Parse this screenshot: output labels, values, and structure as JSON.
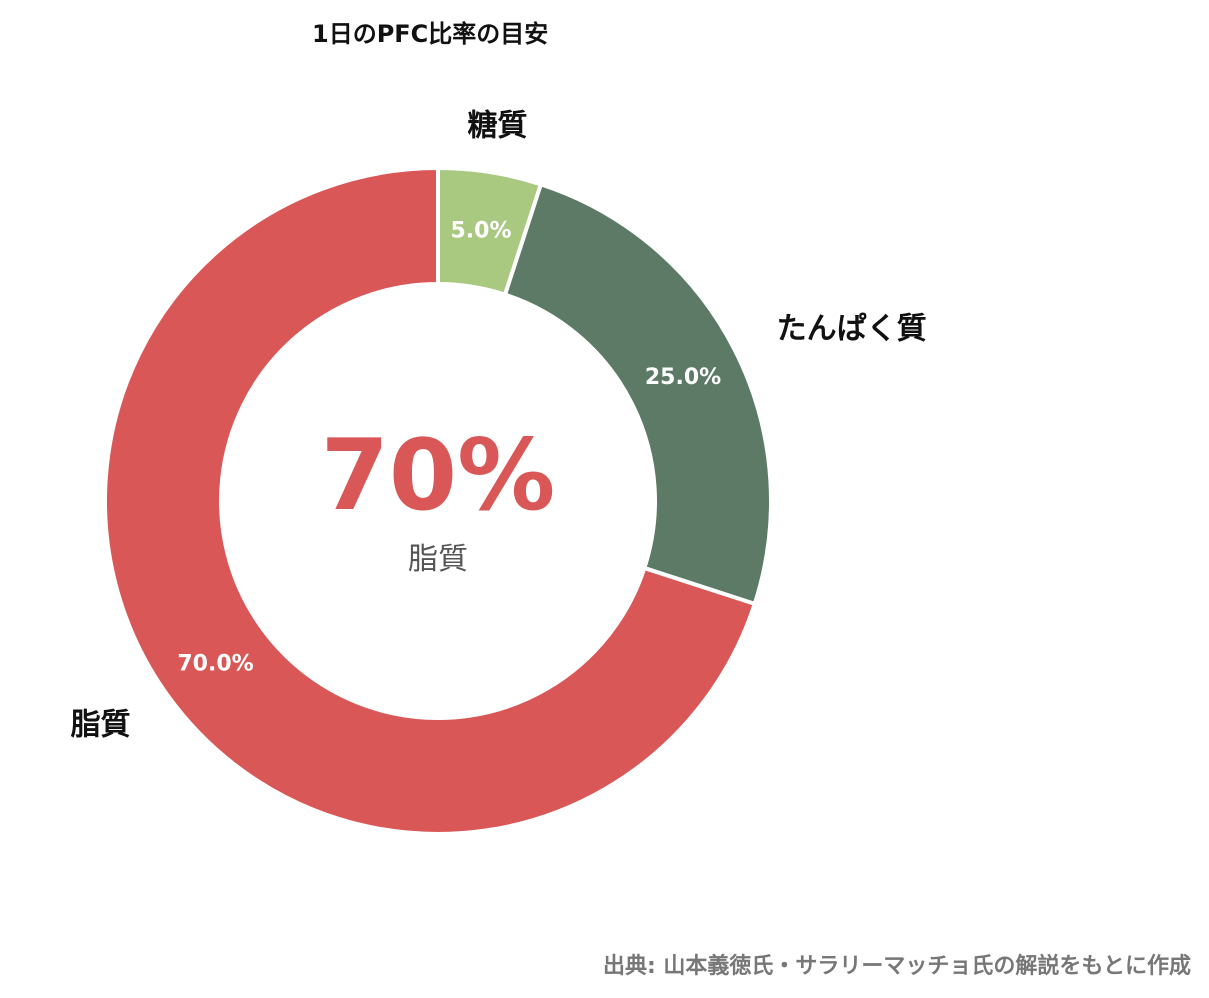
{
  "chart_data": {
    "type": "pie",
    "variant": "donut",
    "title": "1日のPFC比率の目安",
    "categories": [
      "糖質",
      "たんぱく質",
      "脂質"
    ],
    "values": [
      5.0,
      25.0,
      70.0
    ],
    "value_labels": [
      "5.0%",
      "25.0%",
      "70.0%"
    ],
    "colors": [
      "#a9c981",
      "#5c7a66",
      "#d95757"
    ],
    "center_value": "70%",
    "center_label": "脂質",
    "center_color": "#d95757",
    "start_angle_deg": 0,
    "direction": "clockwise",
    "legend": "none"
  },
  "source_note": "出典: 山本義徳氏・サラリーマッチョ氏の解説をもとに作成"
}
